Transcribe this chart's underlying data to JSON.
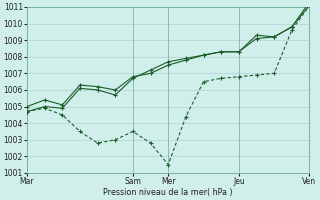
{
  "background_color": "#d0eeea",
  "grid_color": "#b0d4d0",
  "line_color": "#1a5c2a",
  "xlabel": "Pression niveau de la mer( hPa )",
  "ylim": [
    1001,
    1011
  ],
  "yticks": [
    1001,
    1002,
    1003,
    1004,
    1005,
    1006,
    1007,
    1008,
    1009,
    1010,
    1011
  ],
  "xtick_labels": [
    "Mar",
    "Sam",
    "Mer",
    "Jeu",
    "Ven"
  ],
  "xtick_positions": [
    0,
    12,
    16,
    24,
    32
  ],
  "xlim": [
    0,
    32
  ],
  "vline_positions": [
    0,
    12,
    16,
    24,
    32
  ],
  "line1_x": [
    0,
    2,
    4,
    6,
    8,
    10,
    12,
    14,
    16,
    18,
    20,
    22,
    24,
    26,
    28,
    30,
    32
  ],
  "line1_y": [
    1005.0,
    1005.4,
    1005.1,
    1006.3,
    1006.2,
    1006.0,
    1006.8,
    1007.0,
    1007.5,
    1007.8,
    1008.1,
    1008.3,
    1008.3,
    1009.3,
    1009.2,
    1009.8,
    1011.1
  ],
  "line2_x": [
    0,
    2,
    4,
    6,
    8,
    10,
    12,
    14,
    16,
    18,
    20,
    22,
    24,
    26,
    28,
    30,
    32
  ],
  "line2_y": [
    1004.7,
    1005.0,
    1004.9,
    1006.1,
    1006.0,
    1005.7,
    1006.7,
    1007.2,
    1007.7,
    1007.9,
    1008.1,
    1008.3,
    1008.3,
    1009.1,
    1009.2,
    1009.8,
    1011.3
  ],
  "line3_x": [
    0,
    2,
    4,
    6,
    8,
    10,
    12,
    14,
    16,
    18,
    20,
    22,
    24,
    26,
    28,
    30,
    32
  ],
  "line3_y": [
    1004.7,
    1004.9,
    1004.5,
    1003.5,
    1002.8,
    1003.0,
    1003.5,
    1002.8,
    1001.5,
    1004.4,
    1006.5,
    1006.7,
    1006.8,
    1006.9,
    1007.0,
    1009.6,
    1011.1
  ]
}
